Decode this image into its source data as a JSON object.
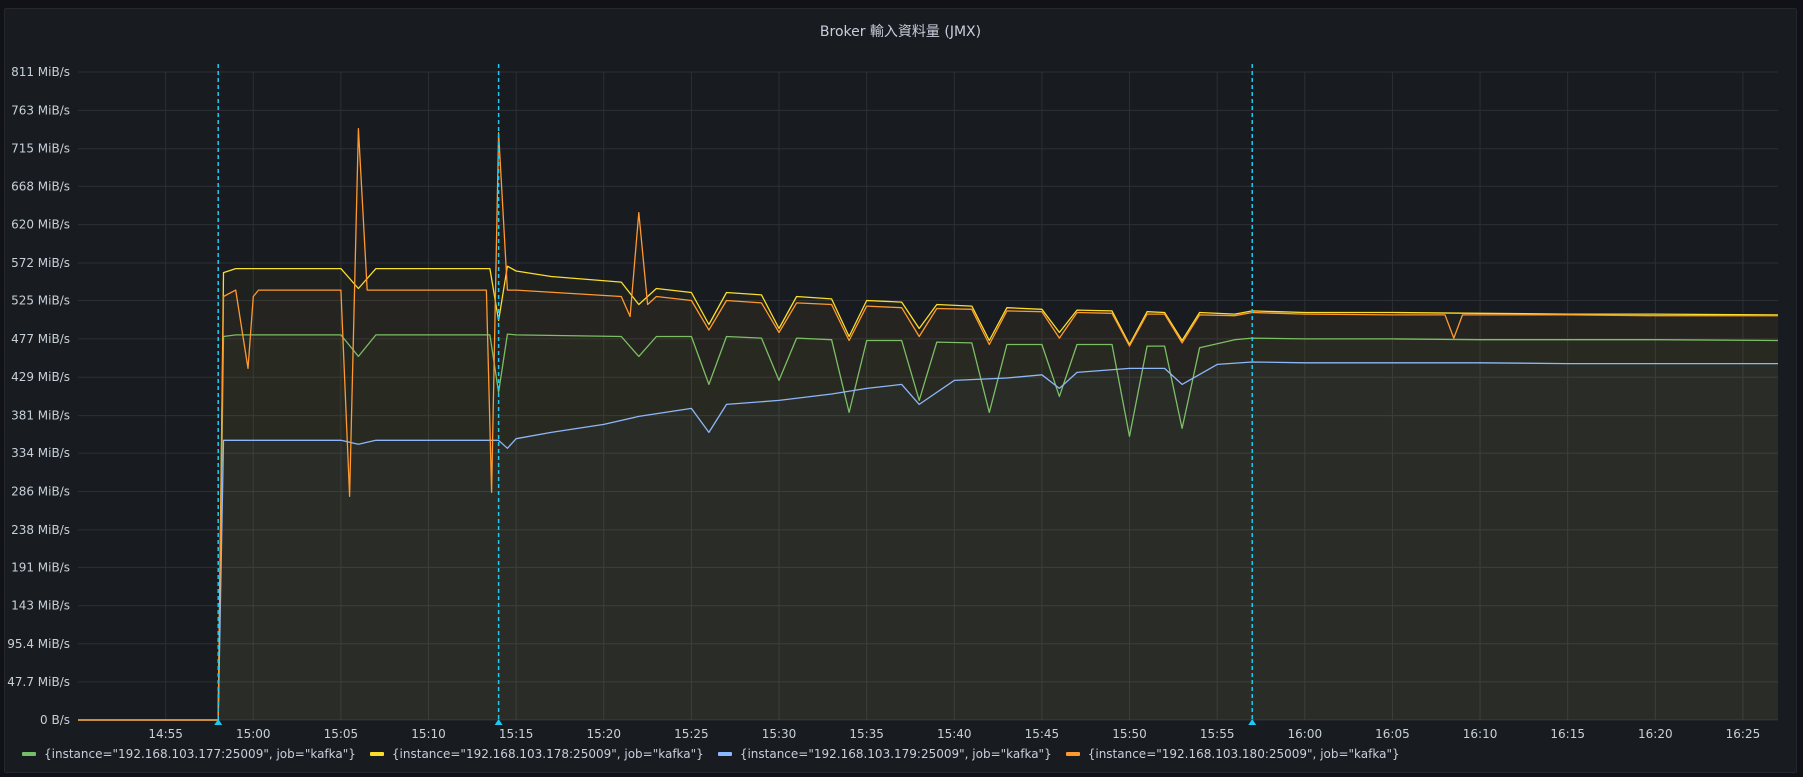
{
  "panel": {
    "title": "Broker 輸入資料量 (JMX)"
  },
  "chart_data": {
    "type": "line",
    "title": "Broker 輸入資料量 (JMX)",
    "xlabel": "",
    "ylabel": "",
    "x_unit": "time (HH:MM)",
    "y_unit": "MiB/s",
    "xlim": [
      "14:50",
      "16:27"
    ],
    "ylim": [
      0,
      811
    ],
    "y_ticks": [
      "0 B/s",
      "47.7 MiB/s",
      "95.4 MiB/s",
      "143 MiB/s",
      "191 MiB/s",
      "238 MiB/s",
      "286 MiB/s",
      "334 MiB/s",
      "381 MiB/s",
      "429 MiB/s",
      "477 MiB/s",
      "525 MiB/s",
      "572 MiB/s",
      "620 MiB/s",
      "668 MiB/s",
      "715 MiB/s",
      "763 MiB/s",
      "811 MiB/s"
    ],
    "y_tick_values": [
      0,
      47.7,
      95.4,
      143,
      191,
      238,
      286,
      334,
      381,
      429,
      477,
      525,
      572,
      620,
      668,
      715,
      763,
      811
    ],
    "x_ticks": [
      "14:55",
      "15:00",
      "15:05",
      "15:10",
      "15:15",
      "15:20",
      "15:25",
      "15:30",
      "15:35",
      "15:40",
      "15:45",
      "15:50",
      "15:55",
      "16:00",
      "16:05",
      "16:10",
      "16:15",
      "16:20",
      "16:25"
    ],
    "annotations": [
      "14:58",
      "15:14",
      "15:57"
    ],
    "grid": true,
    "legend_position": "bottom-left",
    "series": [
      {
        "name": "{instance=\"192.168.103.177:25009\", job=\"kafka\"}",
        "color": "#73bf69",
        "x": [
          "14:50",
          "14:58",
          "14:58.3",
          "14:59",
          "15:05",
          "15:06",
          "15:07",
          "15:13.5",
          "15:14",
          "15:14.5",
          "15:15",
          "15:21",
          "15:22",
          "15:23",
          "15:25",
          "15:26",
          "15:27",
          "15:29",
          "15:30",
          "15:31",
          "15:33",
          "15:34",
          "15:35",
          "15:37",
          "15:38",
          "15:39",
          "15:41",
          "15:42",
          "15:43",
          "15:45",
          "15:46",
          "15:47",
          "15:49",
          "15:50",
          "15:51",
          "15:52",
          "15:53",
          "15:54",
          "15:56",
          "15:57",
          "16:00",
          "16:05",
          "16:10",
          "16:15",
          "16:20",
          "16:27"
        ],
        "values": [
          0,
          0,
          480,
          482,
          482,
          455,
          482,
          482,
          410,
          483,
          482,
          480,
          455,
          480,
          480,
          420,
          480,
          478,
          425,
          478,
          476,
          385,
          475,
          475,
          400,
          473,
          472,
          385,
          470,
          470,
          405,
          470,
          470,
          355,
          468,
          468,
          365,
          466,
          476,
          478,
          477,
          477,
          476,
          476,
          476,
          475
        ]
      },
      {
        "name": "{instance=\"192.168.103.178:25009\", job=\"kafka\"}",
        "color": "#fade2a",
        "x": [
          "14:50",
          "14:58",
          "14:58.3",
          "14:59",
          "15:05",
          "15:06",
          "15:07",
          "15:13.5",
          "15:14",
          "15:14.5",
          "15:15",
          "15:17",
          "15:21",
          "15:22",
          "15:23",
          "15:25",
          "15:26",
          "15:27",
          "15:29",
          "15:30",
          "15:31",
          "15:33",
          "15:34",
          "15:35",
          "15:37",
          "15:38",
          "15:39",
          "15:41",
          "15:42",
          "15:43",
          "15:45",
          "15:46",
          "15:47",
          "15:49",
          "15:50",
          "15:51",
          "15:52",
          "15:53",
          "15:54",
          "15:56",
          "15:57",
          "16:00",
          "16:05",
          "16:10",
          "16:15",
          "16:20",
          "16:27"
        ],
        "values": [
          0,
          0,
          560,
          565,
          565,
          540,
          565,
          565,
          500,
          568,
          562,
          555,
          548,
          520,
          540,
          535,
          495,
          535,
          532,
          490,
          530,
          527,
          480,
          525,
          523,
          490,
          520,
          518,
          475,
          516,
          514,
          485,
          513,
          512,
          470,
          511,
          510,
          475,
          510,
          508,
          512,
          510,
          510,
          509,
          508,
          508,
          507
        ]
      },
      {
        "name": "{instance=\"192.168.103.179:25009\", job=\"kafka\"}",
        "color": "#8ab8ff",
        "x": [
          "14:50",
          "14:58",
          "14:58.3",
          "14:59",
          "15:05",
          "15:06",
          "15:07",
          "15:14",
          "15:14.5",
          "15:15",
          "15:17",
          "15:20",
          "15:22",
          "15:25",
          "15:26",
          "15:27",
          "15:30",
          "15:33",
          "15:35",
          "15:37",
          "15:38",
          "15:40",
          "15:43",
          "15:45",
          "15:46",
          "15:47",
          "15:50",
          "15:52",
          "15:53",
          "15:55",
          "15:57",
          "16:00",
          "16:05",
          "16:10",
          "16:15",
          "16:20",
          "16:27"
        ],
        "values": [
          0,
          0,
          350,
          350,
          350,
          345,
          350,
          350,
          340,
          352,
          360,
          370,
          380,
          390,
          360,
          395,
          400,
          408,
          415,
          420,
          395,
          425,
          428,
          432,
          415,
          435,
          440,
          440,
          420,
          445,
          448,
          447,
          447,
          447,
          446,
          446,
          446
        ]
      },
      {
        "name": "{instance=\"192.168.103.180:25009\", job=\"kafka\"}",
        "color": "#ff9830",
        "x": [
          "14:50",
          "14:58",
          "14:58.3",
          "14:59",
          "14:59.7",
          "15:00",
          "15:00.3",
          "15:05",
          "15:05.5",
          "15:06",
          "15:06.5",
          "15:07",
          "15:13.3",
          "15:13.6",
          "15:14",
          "15:14.5",
          "15:15",
          "15:21",
          "15:21.5",
          "15:22",
          "15:22.5",
          "15:23",
          "15:25",
          "15:26",
          "15:27",
          "15:29",
          "15:30",
          "15:31",
          "15:33",
          "15:34",
          "15:35",
          "15:37",
          "15:38",
          "15:39",
          "15:41",
          "15:42",
          "15:43",
          "15:45",
          "15:46",
          "15:47",
          "15:49",
          "15:50",
          "15:51",
          "15:52",
          "15:53",
          "15:54",
          "15:56",
          "15:57",
          "16:00",
          "16:05",
          "16:08",
          "16:08.5",
          "16:09",
          "16:15",
          "16:20",
          "16:27"
        ],
        "values": [
          0,
          0,
          530,
          538,
          440,
          530,
          538,
          538,
          280,
          740,
          538,
          538,
          538,
          285,
          735,
          538,
          538,
          530,
          505,
          635,
          520,
          530,
          525,
          488,
          525,
          522,
          485,
          522,
          520,
          475,
          518,
          516,
          480,
          515,
          514,
          470,
          512,
          511,
          478,
          510,
          509,
          468,
          508,
          508,
          472,
          507,
          506,
          510,
          508,
          507,
          507,
          478,
          507,
          507,
          506,
          506
        ]
      }
    ]
  }
}
